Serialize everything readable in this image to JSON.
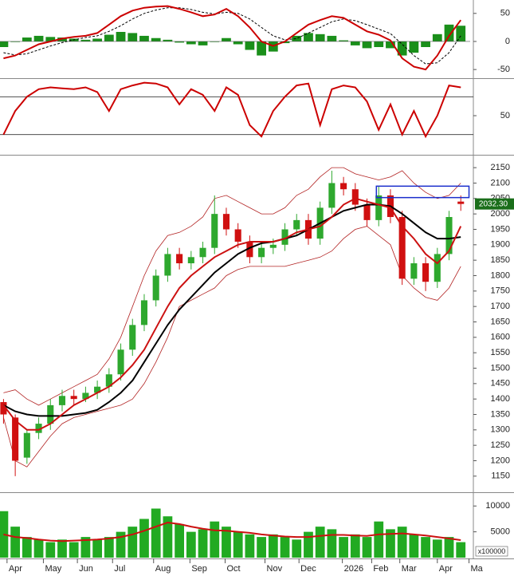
{
  "chart_data": [
    {
      "type": "macd",
      "ylim": [
        -64,
        71
      ],
      "yticks": [
        50,
        0,
        -50
      ],
      "xlim": [
        -0.3,
        39.8
      ],
      "macd": [
        -30,
        -25,
        -15,
        -5,
        0,
        5,
        8,
        10,
        15,
        30,
        45,
        55,
        60,
        62,
        63,
        58,
        52,
        45,
        48,
        58,
        45,
        25,
        0,
        -8,
        0,
        15,
        30,
        38,
        45,
        42,
        30,
        18,
        12,
        2,
        -30,
        -45,
        -50,
        -25,
        10,
        38
      ],
      "signal": [
        -20,
        -24,
        -22,
        -15,
        -8,
        -2,
        3,
        7,
        10,
        18,
        28,
        40,
        50,
        56,
        60,
        60,
        57,
        52,
        49,
        52,
        50,
        40,
        25,
        10,
        3,
        5,
        15,
        25,
        35,
        40,
        37,
        30,
        22,
        14,
        -5,
        -25,
        -40,
        -38,
        -20,
        10
      ],
      "histogram": [
        -10,
        -1,
        7,
        10,
        8,
        7,
        5,
        3,
        5,
        12,
        17,
        15,
        10,
        6,
        3,
        -2,
        -5,
        -7,
        -1,
        6,
        -5,
        -15,
        -25,
        -18,
        -3,
        10,
        15,
        13,
        10,
        2,
        -7,
        -12,
        -10,
        -12,
        -25,
        -20,
        -10,
        13,
        30,
        28
      ],
      "macd_color": "#cc0000",
      "signal_color": "#000000",
      "histogram_color": "#1a8f1a"
    },
    {
      "type": "rsi",
      "ylim": [
        12,
        88
      ],
      "yticks": [
        50
      ],
      "levels": [
        70,
        30
      ],
      "xlim": [
        -0.3,
        39.8
      ],
      "values": [
        30,
        55,
        70,
        78,
        80,
        79,
        78,
        80,
        75,
        55,
        78,
        82,
        85,
        84,
        80,
        62,
        78,
        72,
        55,
        80,
        72,
        40,
        28,
        55,
        70,
        82,
        84,
        40,
        78,
        82,
        80,
        65,
        35,
        62,
        30,
        55,
        28,
        50,
        82,
        80
      ],
      "color": "#cc0000"
    },
    {
      "type": "candlestick",
      "ylim": [
        1103,
        2184
      ],
      "xlim": [
        -0.3,
        39.8
      ],
      "yticks": [
        2150,
        2100,
        2050,
        2000,
        1950,
        1900,
        1850,
        1800,
        1750,
        1700,
        1650,
        1600,
        1550,
        1500,
        1450,
        1400,
        1350,
        1300,
        1250,
        1200,
        1150
      ],
      "open": [
        1390,
        1340,
        1210,
        1290,
        1320,
        1380,
        1410,
        1400,
        1420,
        1440,
        1480,
        1560,
        1640,
        1720,
        1800,
        1870,
        1840,
        1860,
        1890,
        2000,
        1950,
        1910,
        1860,
        1890,
        1900,
        1950,
        1980,
        1920,
        2020,
        2100,
        2080,
        2030,
        1980,
        2060,
        1990,
        1790,
        1840,
        1780,
        1870,
        2040
      ],
      "high": [
        1400,
        1350,
        1300,
        1340,
        1400,
        1430,
        1430,
        1440,
        1460,
        1500,
        1580,
        1660,
        1740,
        1820,
        1890,
        1890,
        1880,
        1910,
        2060,
        2020,
        1970,
        1930,
        1910,
        1920,
        1970,
        2000,
        2000,
        2040,
        2140,
        2120,
        2100,
        2050,
        2090,
        2080,
        2010,
        1860,
        1860,
        1890,
        2010,
        2060
      ],
      "low": [
        1320,
        1150,
        1190,
        1270,
        1300,
        1360,
        1380,
        1390,
        1400,
        1420,
        1460,
        1540,
        1620,
        1700,
        1780,
        1820,
        1820,
        1840,
        1870,
        1930,
        1890,
        1840,
        1840,
        1870,
        1880,
        1930,
        1900,
        1900,
        2000,
        2060,
        2010,
        1960,
        1960,
        1970,
        1770,
        1770,
        1750,
        1760,
        1850,
        2010
      ],
      "close": [
        1350,
        1200,
        1290,
        1320,
        1380,
        1410,
        1400,
        1420,
        1440,
        1480,
        1560,
        1640,
        1720,
        1800,
        1870,
        1840,
        1860,
        1890,
        2000,
        1950,
        1910,
        1860,
        1890,
        1900,
        1950,
        1980,
        1920,
        2020,
        2100,
        2080,
        2030,
        1980,
        2060,
        1990,
        1790,
        1840,
        1780,
        1870,
        1990,
        2032.3
      ],
      "last_label": "2032.30",
      "ma_fast": [
        1380,
        1330,
        1300,
        1300,
        1320,
        1350,
        1380,
        1400,
        1420,
        1440,
        1470,
        1510,
        1560,
        1630,
        1700,
        1760,
        1800,
        1830,
        1860,
        1880,
        1900,
        1910,
        1910,
        1910,
        1920,
        1940,
        1950,
        1960,
        1990,
        2030,
        2050,
        2040,
        2030,
        2020,
        1960,
        1920,
        1870,
        1840,
        1880,
        1960
      ],
      "ma_slow": [
        1380,
        1360,
        1350,
        1345,
        1345,
        1345,
        1350,
        1355,
        1365,
        1390,
        1420,
        1460,
        1520,
        1580,
        1640,
        1690,
        1730,
        1770,
        1810,
        1840,
        1870,
        1890,
        1905,
        1910,
        1920,
        1930,
        1950,
        1970,
        1990,
        2010,
        2020,
        2030,
        2030,
        2025,
        2000,
        1970,
        1940,
        1920,
        1920,
        1925
      ],
      "band_upper": [
        1420,
        1430,
        1400,
        1380,
        1400,
        1420,
        1440,
        1460,
        1480,
        1530,
        1600,
        1700,
        1800,
        1880,
        1930,
        1940,
        1960,
        1990,
        2050,
        2060,
        2040,
        2020,
        2000,
        2000,
        2020,
        2060,
        2080,
        2120,
        2150,
        2150,
        2130,
        2120,
        2110,
        2120,
        2140,
        2100,
        2070,
        2050,
        2060,
        2100
      ],
      "band_lower": [
        1340,
        1200,
        1180,
        1230,
        1280,
        1320,
        1340,
        1350,
        1360,
        1370,
        1380,
        1400,
        1450,
        1520,
        1600,
        1700,
        1720,
        1740,
        1760,
        1800,
        1820,
        1830,
        1830,
        1830,
        1830,
        1840,
        1850,
        1860,
        1880,
        1920,
        1950,
        1960,
        1930,
        1900,
        1800,
        1760,
        1730,
        1720,
        1760,
        1830
      ],
      "highlight_box": {
        "x": [
          31.8,
          39.7
        ],
        "y": [
          2053,
          2090
        ]
      },
      "up_color": "#2ea82e",
      "down_color": "#d01010",
      "ma_fast_color": "#cc1111",
      "ma_slow_color": "#000000",
      "band_color": "#b22222",
      "box_color": "#1a2ecc"
    },
    {
      "type": "volume",
      "ylim": [
        0,
        12200
      ],
      "yticks": [
        10000,
        5000
      ],
      "xlim": [
        -0.3,
        39.8
      ],
      "unit": "x100000",
      "values": [
        9000,
        6000,
        4000,
        3500,
        3000,
        3500,
        3000,
        4000,
        3500,
        4000,
        5000,
        6000,
        7500,
        9500,
        8000,
        6500,
        5000,
        5500,
        7000,
        6000,
        5000,
        4500,
        4000,
        4500,
        4000,
        3500,
        5000,
        6000,
        5500,
        4000,
        4500,
        4000,
        7000,
        5500,
        6000,
        4500,
        4000,
        3500,
        4000,
        3000
      ],
      "ma": [
        4500,
        4000,
        3800,
        3500,
        3300,
        3200,
        3300,
        3400,
        3500,
        3700,
        4000,
        4500,
        5200,
        6000,
        6800,
        6500,
        6000,
        5600,
        5300,
        5200,
        5000,
        4800,
        4500,
        4300,
        4100,
        4000,
        4000,
        4200,
        4400,
        4400,
        4300,
        4200,
        4500,
        4600,
        4700,
        4500,
        4300,
        4000,
        3700,
        3400
      ],
      "color": "#22aa22",
      "ma_color": "#cc1111",
      "xticks": [
        {
          "value": 0.3,
          "label": "Apr"
        },
        {
          "value": 3.4,
          "label": "May"
        },
        {
          "value": 6.3,
          "label": "Jun"
        },
        {
          "value": 9.3,
          "label": "Jul"
        },
        {
          "value": 12.8,
          "label": "Aug"
        },
        {
          "value": 15.9,
          "label": "Sep"
        },
        {
          "value": 18.9,
          "label": "Oct"
        },
        {
          "value": 22.3,
          "label": "Nov"
        },
        {
          "value": 25.2,
          "label": "Dec"
        },
        {
          "value": 28.9,
          "label": "2026"
        },
        {
          "value": 31.4,
          "label": "Feb"
        },
        {
          "value": 33.8,
          "label": "Mar"
        },
        {
          "value": 37.0,
          "label": "Apr"
        },
        {
          "value": 39.7,
          "label": "Ma"
        }
      ]
    }
  ]
}
